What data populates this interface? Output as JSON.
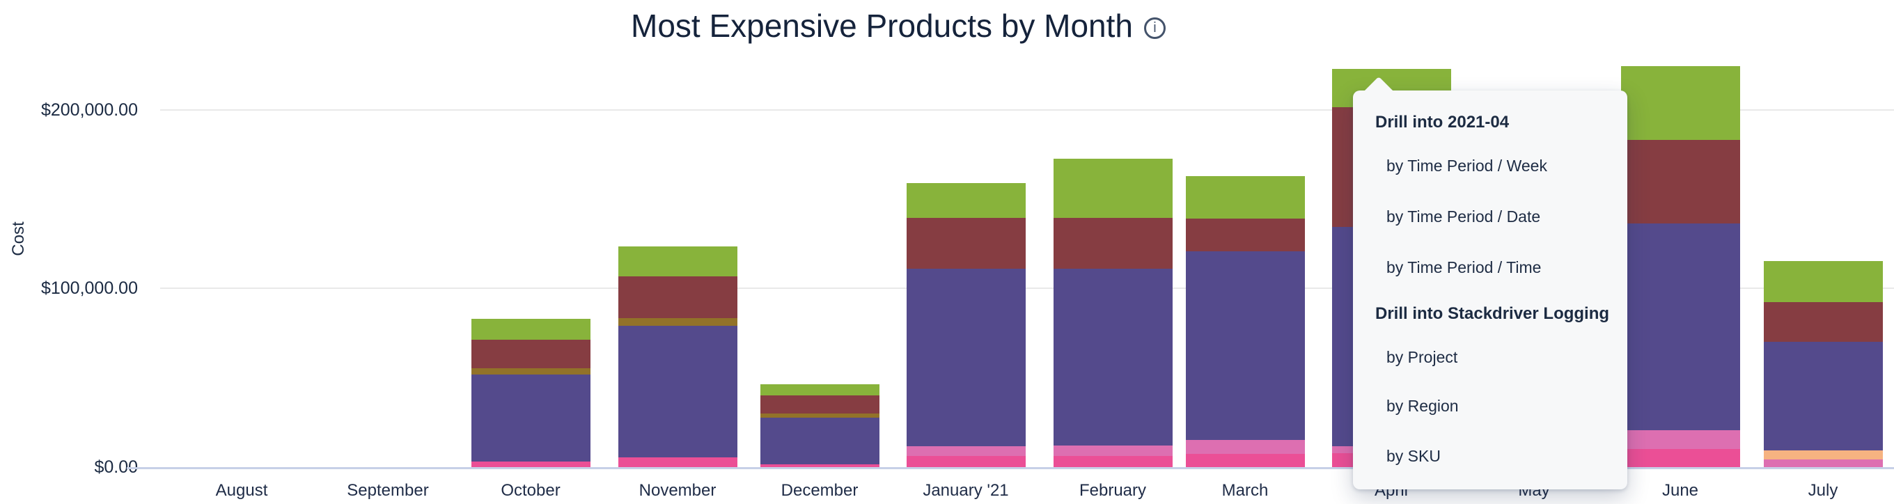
{
  "title": {
    "text": "Most Expensive Products by Month",
    "info_icon": "info",
    "info_glyph": "i"
  },
  "colors": {
    "text_navy": "#1b2a42",
    "gridline": "#e9e9e9",
    "axis_line": "#c7d0e7",
    "menu_background": "#f7f8f9",
    "green": "#88b33b",
    "maroon": "#863d42",
    "olive": "#927229",
    "purple": "#544a8c",
    "light_pink": "#dd6fb1",
    "deep_pink": "#eb4f96",
    "orange": "#f6b381"
  },
  "menu": {
    "sections": [
      {
        "header": "Drill into 2021-04",
        "items": [
          "by Time Period / Week",
          "by Time Period / Date",
          "by Time Period / Time"
        ]
      },
      {
        "header": "Drill into Stackdriver Logging",
        "items": [
          "by Project",
          "by Region",
          "by SKU"
        ]
      }
    ]
  },
  "chart_data": {
    "type": "bar",
    "stacked": true,
    "title": "Most Expensive Products by Month",
    "xlabel": "",
    "ylabel": "Cost",
    "ylim": [
      0,
      240000
    ],
    "grid": "horizontal",
    "legend": "none",
    "y_ticks": [
      {
        "value": 0,
        "label": "$0.00"
      },
      {
        "value": 100000,
        "label": "$100,000.00"
      },
      {
        "value": 200000,
        "label": "$200,000.00"
      }
    ],
    "categories": [
      "August",
      "September",
      "October",
      "November",
      "December",
      "January '21",
      "February",
      "March",
      "April",
      "May",
      "June",
      "July"
    ],
    "series_note": "no legend shown; series identified by color",
    "bars": [
      {
        "month": "August",
        "total": 0,
        "segments": []
      },
      {
        "month": "September",
        "total": 0,
        "segments": []
      },
      {
        "month": "October",
        "total": 82900,
        "segments": [
          {
            "series": "deep_pink",
            "value": 3100
          },
          {
            "series": "purple",
            "value": 48650
          },
          {
            "series": "olive",
            "value": 3500
          },
          {
            "series": "maroon",
            "value": 15950
          },
          {
            "series": "green",
            "value": 11700
          }
        ]
      },
      {
        "month": "November",
        "total": 123400,
        "segments": [
          {
            "series": "deep_pink",
            "value": 5450
          },
          {
            "series": "purple",
            "value": 73550
          },
          {
            "series": "olive",
            "value": 4300
          },
          {
            "series": "maroon",
            "value": 23350
          },
          {
            "series": "green",
            "value": 16750
          }
        ]
      },
      {
        "month": "December",
        "total": 46300,
        "segments": [
          {
            "series": "deep_pink",
            "value": 1550
          },
          {
            "series": "purple",
            "value": 26050
          },
          {
            "series": "olive",
            "value": 2350
          },
          {
            "series": "maroon",
            "value": 10100
          },
          {
            "series": "green",
            "value": 6250
          }
        ]
      },
      {
        "month": "January '21",
        "total": 159150,
        "segments": [
          {
            "series": "deep_pink",
            "value": 6250
          },
          {
            "series": "light_pink",
            "value": 5450
          },
          {
            "series": "purple",
            "value": 99600
          },
          {
            "series": "maroon",
            "value": 28400
          },
          {
            "series": "green",
            "value": 19450
          }
        ]
      },
      {
        "month": "February",
        "total": 172400,
        "segments": [
          {
            "series": "deep_pink",
            "value": 6250
          },
          {
            "series": "light_pink",
            "value": 5850
          },
          {
            "series": "purple",
            "value": 98850
          },
          {
            "series": "maroon",
            "value": 28400
          },
          {
            "series": "green",
            "value": 33050
          }
        ]
      },
      {
        "month": "March",
        "total": 163050,
        "segments": [
          {
            "series": "deep_pink",
            "value": 7400
          },
          {
            "series": "light_pink",
            "value": 7800
          },
          {
            "series": "purple",
            "value": 105800
          },
          {
            "series": "maroon",
            "value": 18300
          },
          {
            "series": "green",
            "value": 23750
          }
        ]
      },
      {
        "month": "April",
        "total": 222950,
        "segments": [
          {
            "series": "deep_pink",
            "value": 7800
          },
          {
            "series": "light_pink",
            "value": 3900
          },
          {
            "series": "purple",
            "value": 122950
          },
          {
            "series": "maroon",
            "value": 66900
          },
          {
            "series": "green",
            "value": 21400
          }
        ]
      },
      {
        "month": "May",
        "occluded_by_menu": true,
        "segments": null
      },
      {
        "month": "June",
        "total": 224500,
        "segments": [
          {
            "series": "deep_pink",
            "value": 10100
          },
          {
            "series": "light_pink",
            "value": 10500
          },
          {
            "series": "purple",
            "value": 115950
          },
          {
            "series": "maroon",
            "value": 46700
          },
          {
            "series": "green",
            "value": 41250
          }
        ]
      },
      {
        "month": "July",
        "total": 115200,
        "segments": [
          {
            "series": "light_pink",
            "value": 4300
          },
          {
            "series": "orange",
            "value": 5050
          },
          {
            "series": "purple",
            "value": 60700
          },
          {
            "series": "maroon",
            "value": 22200
          },
          {
            "series": "green",
            "value": 22950
          }
        ]
      }
    ]
  }
}
